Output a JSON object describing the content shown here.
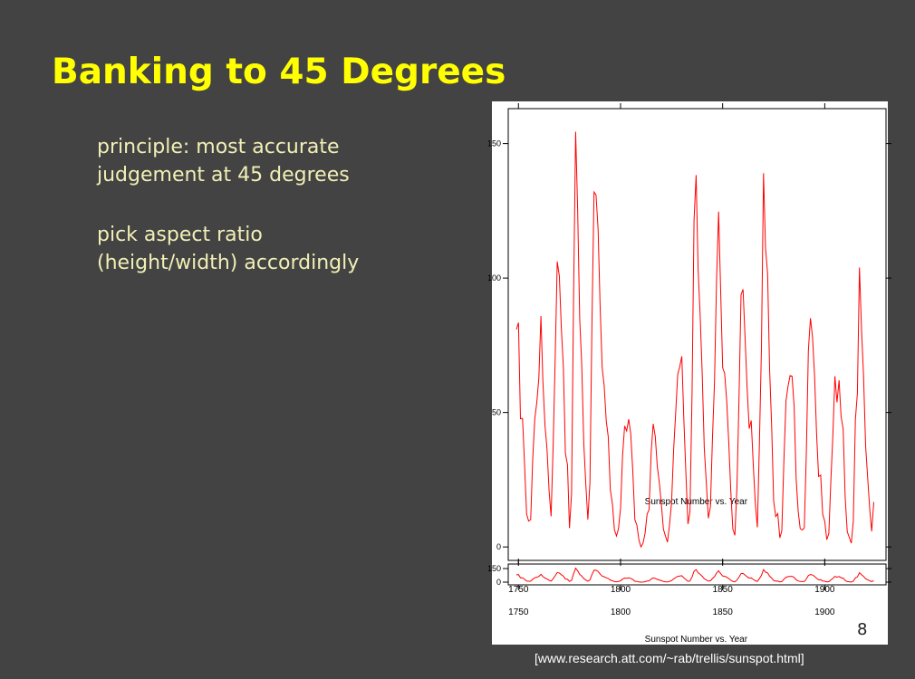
{
  "slide": {
    "title": "Banking to 45 Degrees",
    "bullets": [
      [
        "principle: most accurate",
        "judgement at 45 degrees"
      ],
      [
        "pick aspect ratio",
        "(height/width) accordingly"
      ]
    ],
    "page_number": "8",
    "source": "[www.research.att.com/~rab/trellis/sunspot.html]"
  },
  "colors": {
    "background": "#434343",
    "title": "#ffff00",
    "body_text": "#f2efb6",
    "series_line": "#ff0000",
    "figure_background": "#ffffff"
  },
  "chart_data": [
    {
      "type": "line",
      "xlabel": "Sunspot Number vs. Year",
      "ylabel": "",
      "xlim": [
        1745,
        1930
      ],
      "ylim": [
        -5,
        163
      ],
      "xticks": [
        1750,
        1800,
        1850,
        1900
      ],
      "yticks": [
        0,
        50,
        100,
        150
      ],
      "grid": false,
      "series_color": "#ff0000",
      "series": [
        {
          "x": [
            1749,
            1750,
            1751,
            1752,
            1753,
            1754,
            1755,
            1756,
            1757,
            1758,
            1759,
            1760,
            1761,
            1762,
            1763,
            1764,
            1765,
            1766,
            1767,
            1768,
            1769,
            1770,
            1771,
            1772,
            1773,
            1774,
            1775,
            1776,
            1777,
            1778,
            1779,
            1780,
            1781,
            1782,
            1783,
            1784,
            1785,
            1786,
            1787,
            1788,
            1789,
            1790,
            1791,
            1792,
            1793,
            1794,
            1795,
            1796,
            1797,
            1798,
            1799,
            1800,
            1801,
            1802,
            1803,
            1804,
            1805,
            1806,
            1807,
            1808,
            1809,
            1810,
            1811,
            1812,
            1813,
            1814,
            1815,
            1816,
            1817,
            1818,
            1819,
            1820,
            1821,
            1822,
            1823,
            1824,
            1825,
            1826,
            1827,
            1828,
            1829,
            1830,
            1831,
            1832,
            1833,
            1834,
            1835,
            1836,
            1837,
            1838,
            1839,
            1840,
            1841,
            1842,
            1843,
            1844,
            1845,
            1846,
            1847,
            1848,
            1849,
            1850,
            1851,
            1852,
            1853,
            1854,
            1855,
            1856,
            1857,
            1858,
            1859,
            1860,
            1861,
            1862,
            1863,
            1864,
            1865,
            1866,
            1867,
            1868,
            1869,
            1870,
            1871,
            1872,
            1873,
            1874,
            1875,
            1876,
            1877,
            1878,
            1879,
            1880,
            1881,
            1882,
            1883,
            1884,
            1885,
            1886,
            1887,
            1888,
            1889,
            1890,
            1891,
            1892,
            1893,
            1894,
            1895,
            1896,
            1897,
            1898,
            1899,
            1900,
            1901,
            1902,
            1903,
            1904,
            1905,
            1906,
            1907,
            1908,
            1909,
            1910,
            1911,
            1912,
            1913,
            1914,
            1915,
            1916,
            1917,
            1918,
            1919,
            1920,
            1921,
            1922,
            1923,
            1924
          ],
          "y": [
            80.9,
            83.4,
            47.7,
            47.8,
            30.7,
            12.2,
            9.6,
            10.2,
            32.4,
            47.6,
            54.0,
            62.9,
            85.9,
            61.2,
            45.1,
            36.4,
            20.9,
            11.4,
            37.8,
            69.8,
            106.1,
            100.8,
            81.6,
            66.5,
            34.8,
            30.6,
            7.0,
            19.8,
            92.5,
            154.4,
            125.9,
            84.8,
            68.1,
            38.5,
            22.8,
            10.2,
            24.1,
            82.9,
            132.0,
            130.9,
            118.1,
            89.9,
            66.6,
            60.0,
            46.9,
            41.0,
            21.3,
            16.0,
            6.4,
            4.1,
            6.8,
            14.5,
            34.0,
            45.0,
            43.1,
            47.5,
            42.2,
            28.1,
            10.1,
            8.1,
            2.5,
            0.0,
            1.4,
            5.0,
            12.2,
            13.9,
            35.4,
            45.8,
            41.1,
            30.1,
            23.9,
            15.6,
            6.6,
            4.0,
            1.8,
            8.5,
            16.6,
            36.3,
            49.6,
            64.2,
            67.0,
            70.9,
            47.8,
            27.5,
            8.5,
            13.2,
            56.9,
            121.5,
            138.3,
            103.2,
            85.7,
            64.6,
            36.7,
            24.2,
            10.7,
            15.0,
            40.1,
            61.5,
            98.5,
            124.7,
            96.3,
            66.6,
            64.5,
            54.1,
            39.0,
            20.6,
            6.7,
            4.3,
            22.7,
            54.8,
            93.8,
            95.8,
            77.2,
            59.1,
            44.0,
            47.0,
            30.5,
            16.3,
            7.3,
            37.6,
            74.0,
            139.0,
            111.2,
            101.6,
            66.2,
            44.7,
            17.0,
            11.3,
            12.4,
            3.4,
            6.0,
            32.3,
            54.3,
            59.7,
            63.7,
            63.5,
            52.2,
            25.4,
            13.1,
            6.8,
            6.3,
            7.1,
            35.6,
            73.0,
            85.1,
            78.0,
            64.0,
            41.8,
            26.2,
            26.7,
            12.1,
            9.5,
            2.7,
            5.0,
            24.4,
            42.0,
            63.5,
            53.8,
            62.0,
            48.5,
            43.9,
            18.6,
            5.7,
            3.6,
            1.4,
            9.6,
            47.4,
            57.1,
            103.9,
            80.6,
            63.6,
            37.6,
            26.1,
            14.2,
            5.8,
            16.7
          ]
        }
      ]
    },
    {
      "type": "line",
      "xlabel": "Sunspot Number vs. Year",
      "ylabel": "",
      "xlim": [
        1745,
        1930
      ],
      "ylim": [
        -30,
        200
      ],
      "xticks": [
        1750,
        1800,
        1850,
        1900
      ],
      "yticks": [
        0,
        150
      ],
      "grid": false,
      "series_color": "#ff0000",
      "series": [
        {
          "x_ref": 0
        }
      ]
    }
  ]
}
